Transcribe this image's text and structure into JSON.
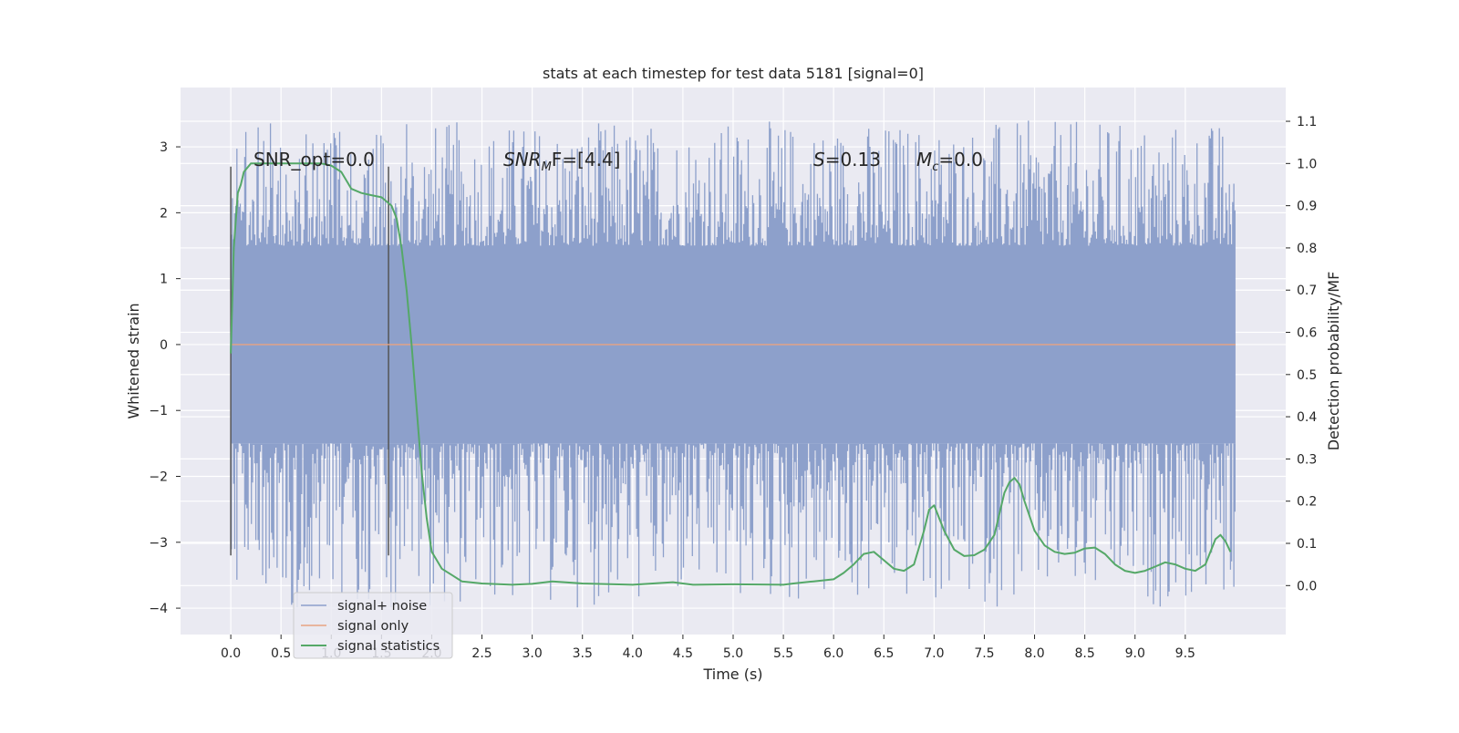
{
  "chart_data": {
    "type": "line",
    "title": "stats at each timestep for test data 5181 [signal=0]",
    "xlabel": "Time (s)",
    "ylabel": "Whitened strain",
    "y2label": "Detection probability/MF",
    "xlim": [
      -0.5,
      10.5
    ],
    "ylim": [
      -4.4,
      3.9
    ],
    "y2lim": [
      -0.116,
      1.18
    ],
    "xticks": [
      0.0,
      0.5,
      1.0,
      1.5,
      2.0,
      2.5,
      3.0,
      3.5,
      4.0,
      4.5,
      5.0,
      5.5,
      6.0,
      6.5,
      7.0,
      7.5,
      8.0,
      8.5,
      9.0,
      9.5
    ],
    "xtick_labels": [
      "0.0",
      "0.5",
      "1.0",
      "1.5",
      "2.0",
      "2.5",
      "3.0",
      "3.5",
      "4.0",
      "4.5",
      "5.0",
      "5.5",
      "6.0",
      "6.5",
      "7.0",
      "7.5",
      "8.0",
      "8.5",
      "9.0",
      "9.5"
    ],
    "yticks": [
      3,
      2,
      1,
      0,
      -1,
      -2,
      -3,
      -4
    ],
    "ytick_labels": [
      "3",
      "2",
      "1",
      "0",
      "−1",
      "−2",
      "−3",
      "−4"
    ],
    "y2ticks": [
      1.1,
      1.0,
      0.9,
      0.8,
      0.7,
      0.6,
      0.5,
      0.4,
      0.3,
      0.2,
      0.1,
      0.0
    ],
    "y2tick_labels": [
      "1.1",
      "1.0",
      "0.9",
      "0.8",
      "0.7",
      "0.6",
      "0.5",
      "0.4",
      "0.3",
      "0.2",
      "0.1",
      "0.0"
    ],
    "grid": true,
    "legend_position": "lower-left",
    "annotations": {
      "snr_opt": "SNR_opt=0.0",
      "snr_mf_base": "SNR",
      "snr_mf_sub": "M",
      "snr_mf_rest": "F=[4.4]",
      "s_base": "S",
      "s_rest": "=0.13",
      "mc_base": "M",
      "mc_sub": "c",
      "mc_rest": "=0.0"
    },
    "vertical_lines_x": [
      0.0,
      1.57
    ],
    "vertical_lines_y": [
      -3.2,
      2.7
    ],
    "series": [
      {
        "name": "signal+ noise",
        "color": "#8da0cb",
        "x_start": 0.0,
        "x_end": 10.0,
        "typical_range": [
          -1.5,
          1.5
        ],
        "min": -4.0,
        "max": 3.4
      },
      {
        "name": "signal only",
        "color": "#e8a382",
        "x": [
          0.0,
          10.0
        ],
        "y": [
          0.0,
          0.0
        ]
      },
      {
        "name": "signal statistics",
        "color": "#55a868",
        "axis": "right",
        "x": [
          0.0,
          0.03,
          0.07,
          0.1,
          0.13,
          0.2,
          0.3,
          0.5,
          0.7,
          0.9,
          1.0,
          1.1,
          1.2,
          1.3,
          1.4,
          1.5,
          1.6,
          1.65,
          1.7,
          1.75,
          1.8,
          1.85,
          1.9,
          1.95,
          2.0,
          2.05,
          2.1,
          2.2,
          2.3,
          2.5,
          2.8,
          3.0,
          3.2,
          3.5,
          4.0,
          4.4,
          4.6,
          5.0,
          5.5,
          5.6,
          5.8,
          6.0,
          6.1,
          6.2,
          6.3,
          6.4,
          6.5,
          6.6,
          6.7,
          6.8,
          6.9,
          6.95,
          7.0,
          7.1,
          7.2,
          7.3,
          7.4,
          7.5,
          7.6,
          7.7,
          7.75,
          7.8,
          7.85,
          7.9,
          8.0,
          8.1,
          8.2,
          8.3,
          8.4,
          8.5,
          8.6,
          8.7,
          8.8,
          8.9,
          9.0,
          9.1,
          9.2,
          9.3,
          9.4,
          9.5,
          9.6,
          9.7,
          9.75,
          9.8,
          9.85,
          9.9,
          9.95
        ],
        "y": [
          0.55,
          0.8,
          0.93,
          0.95,
          0.98,
          1.0,
          1.0,
          1.0,
          1.0,
          1.0,
          0.995,
          0.98,
          0.94,
          0.93,
          0.925,
          0.92,
          0.9,
          0.87,
          0.8,
          0.7,
          0.57,
          0.42,
          0.27,
          0.16,
          0.08,
          0.06,
          0.04,
          0.025,
          0.01,
          0.005,
          0.002,
          0.004,
          0.01,
          0.005,
          0.002,
          0.008,
          0.002,
          0.003,
          0.002,
          0.005,
          0.01,
          0.015,
          0.03,
          0.05,
          0.075,
          0.08,
          0.06,
          0.04,
          0.035,
          0.05,
          0.13,
          0.18,
          0.19,
          0.13,
          0.085,
          0.07,
          0.072,
          0.085,
          0.12,
          0.22,
          0.245,
          0.255,
          0.24,
          0.2,
          0.13,
          0.095,
          0.08,
          0.075,
          0.078,
          0.088,
          0.09,
          0.075,
          0.05,
          0.035,
          0.03,
          0.035,
          0.045,
          0.055,
          0.05,
          0.04,
          0.035,
          0.05,
          0.08,
          0.11,
          0.12,
          0.105,
          0.08
        ]
      }
    ]
  }
}
